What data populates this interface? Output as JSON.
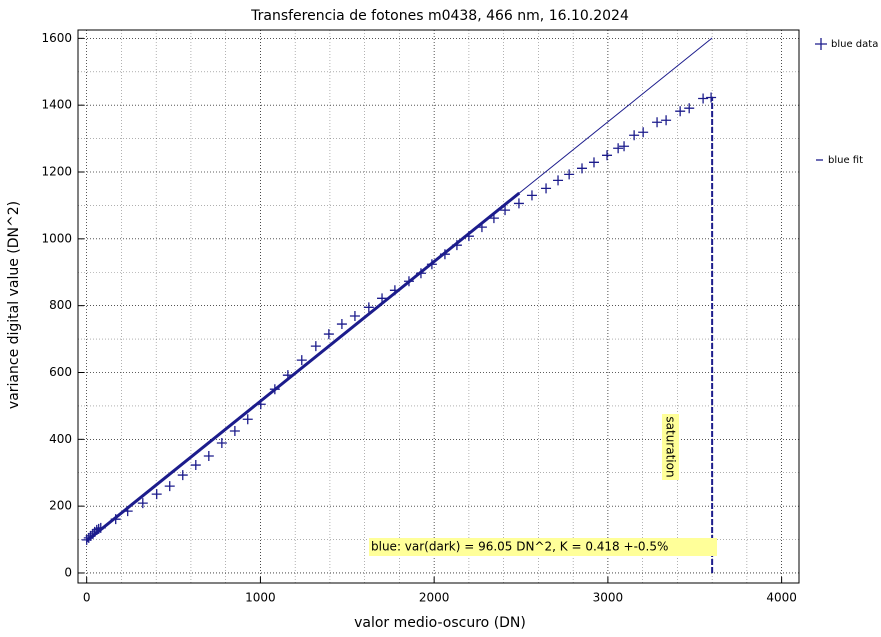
{
  "chart_data": {
    "type": "scatter",
    "title": "Transferencia de fotones m0438, 466 nm, 16.10.2024",
    "x_label": "valor medio-oscuro (DN)",
    "y_label": "variance digital value (DN^2)",
    "xlim": [
      -50,
      4100
    ],
    "ylim": [
      -30,
      1625
    ],
    "xticks": [
      0,
      1000,
      2000,
      3000,
      4000
    ],
    "yticks": [
      0,
      200,
      400,
      600,
      800,
      1000,
      1200,
      1400,
      1600
    ],
    "xminor_step": 200,
    "yminor_step": 100,
    "grid": true,
    "series": [
      {
        "name": "blue data",
        "color": "#1c1c8c",
        "x": [
          0,
          12,
          23,
          35,
          46,
          58,
          69,
          81,
          167,
          236,
          323,
          403,
          478,
          553,
          628,
          703,
          778,
          853,
          927,
          1002,
          1083,
          1158,
          1238,
          1319,
          1394,
          1469,
          1544,
          1624,
          1700,
          1774,
          1855,
          1924,
          1987,
          2062,
          2131,
          2200,
          2275,
          2344,
          2408,
          2488,
          2563,
          2644,
          2713,
          2777,
          2851,
          2920,
          2995,
          3059,
          3093,
          3151,
          3203,
          3283,
          3335,
          3416,
          3468,
          3548,
          3594
        ],
        "values": [
          99,
          105,
          111,
          117,
          123,
          129,
          132,
          135,
          161,
          185,
          209,
          236,
          260,
          293,
          323,
          350,
          389,
          425,
          460,
          505,
          550,
          592,
          637,
          679,
          715,
          745,
          769,
          795,
          822,
          846,
          873,
          897,
          924,
          954,
          981,
          1008,
          1035,
          1062,
          1086,
          1106,
          1130,
          1151,
          1175,
          1193,
          1211,
          1229,
          1250,
          1271,
          1277,
          1310,
          1319,
          1349,
          1355,
          1382,
          1391,
          1420,
          1423
        ]
      },
      {
        "name": "blue fit",
        "color": "#1c1c8c",
        "x": [
          0,
          3600
        ],
        "values": [
          96,
          1601
        ]
      }
    ],
    "fit_segment": {
      "x": [
        0,
        2490
      ],
      "values": [
        96,
        1137
      ]
    },
    "saturation": {
      "x": 3600,
      "top": 1423,
      "label": "saturation"
    },
    "annotation": "blue: var(dark) = 96.05 DN^2, K = 0.418 +-0.5%"
  }
}
